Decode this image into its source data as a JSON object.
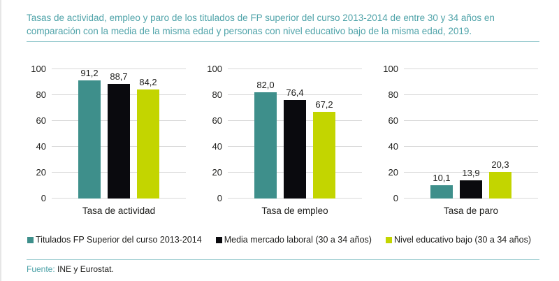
{
  "title": "Tasas de actividad, empleo y paro de los titulados de FP superior del curso 2013-2014 de entre 30 y 34 años en comparación con la media de la misma edad y personas con nivel educativo bajo de la misma edad, 2019.",
  "source": {
    "label": "Fuente:",
    "text": " INE y Eurostat."
  },
  "colors": {
    "title_teal": "#4FA3A9",
    "divider_teal": "#93C8CC",
    "gridline_gray": "#D9D9D9",
    "text_dark": "#1D1D1B"
  },
  "chart_data": {
    "type": "bar",
    "groups": [
      "Tasa de actividad",
      "Tasa de empleo",
      "Tasa de paro"
    ],
    "series": [
      {
        "name": "Titulados FP Superior del curso 2013-2014",
        "color": "#3E8F8B",
        "values": [
          91.2,
          82.0,
          10.1
        ]
      },
      {
        "name": "Media mercado laboral (30 a 34 años)",
        "color": "#0A0A0E",
        "values": [
          88.7,
          76.4,
          13.9
        ]
      },
      {
        "name": "Nivel educativo bajo (30 a 34 años)",
        "color": "#C3D500",
        "values": [
          84.2,
          67.2,
          20.3
        ]
      }
    ],
    "ylim": [
      0,
      100
    ],
    "yticks": [
      0,
      20,
      40,
      60,
      80,
      100
    ],
    "grid": true,
    "legend_position": "bottom",
    "value_label_decimal": "comma"
  }
}
